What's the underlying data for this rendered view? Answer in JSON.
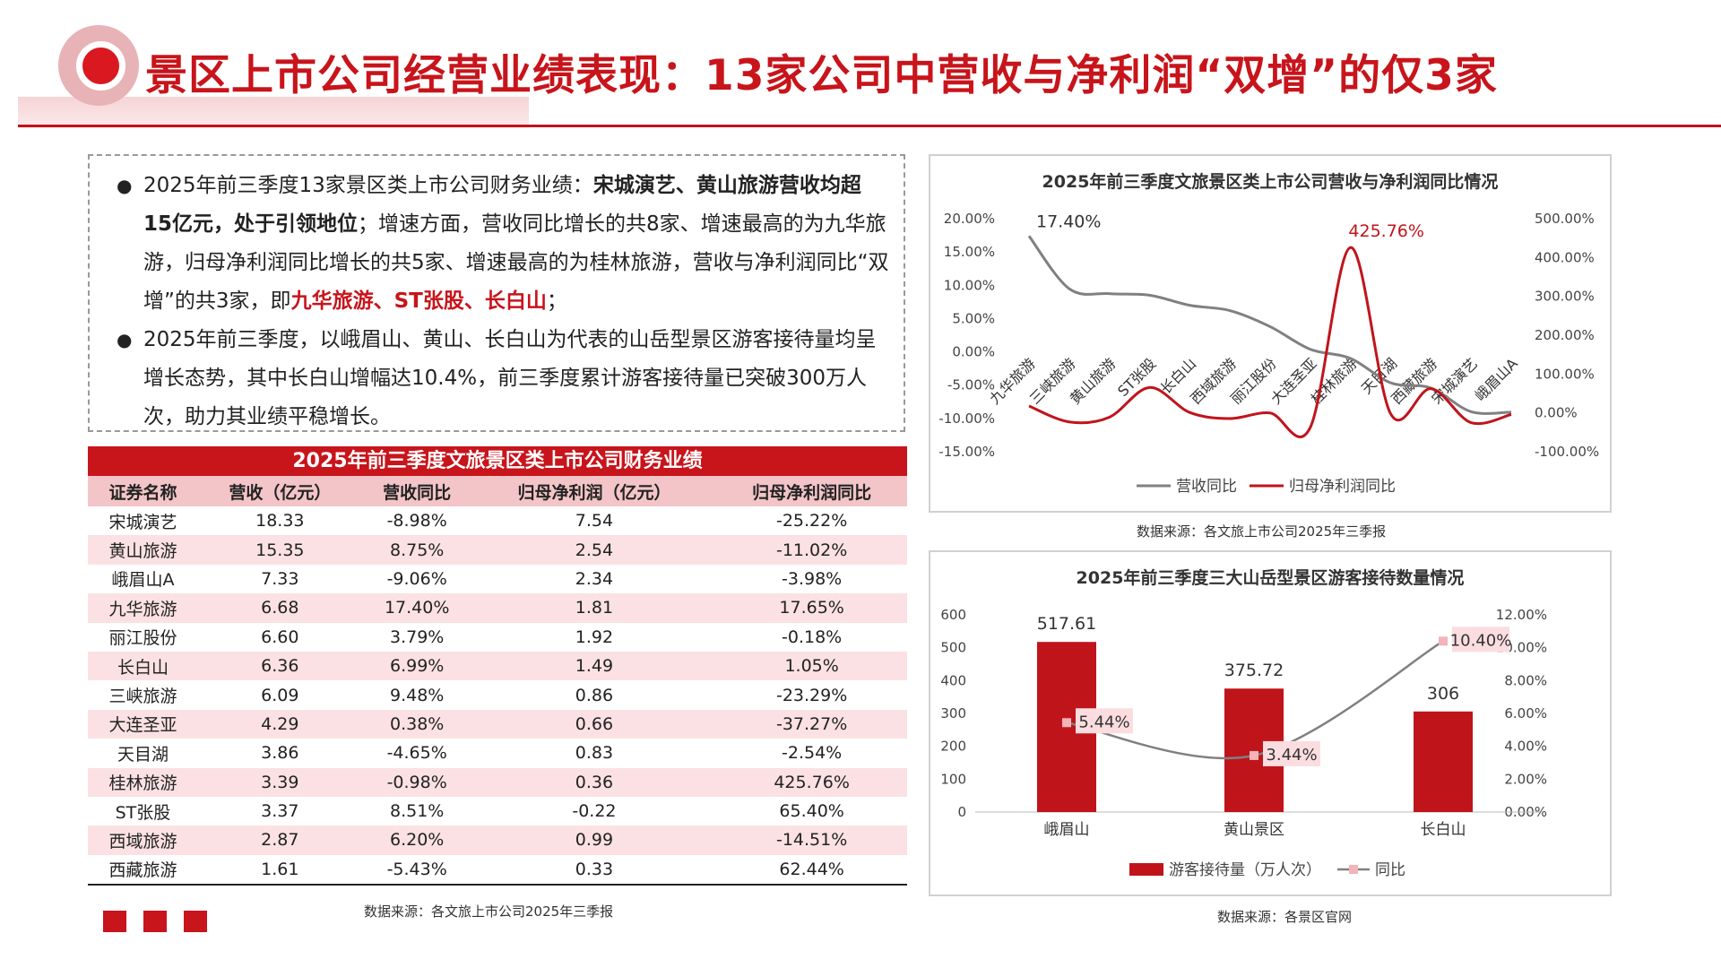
{
  "title": "景区上市公司经营业绩表现：13家公司中营收与净利润“双增”的仅3家",
  "bullets": [
    {
      "parts": [
        {
          "t": "2025年前三季度13家景区类上市公司财务业绩：",
          "s": ""
        },
        {
          "t": "宋城演艺、黄山旅游营收均超15亿元，处于引领地位",
          "s": "b"
        },
        {
          "t": "；增速方面，营收同比增长的共8家、增速最高的为九华旅游，归母净利润同比增长的共5家、增速最高的为桂林旅游，营收与净利润同比“双增”的共3家，即",
          "s": ""
        },
        {
          "t": "九华旅游、ST张股、长白山",
          "s": "red"
        },
        {
          "t": "；",
          "s": ""
        }
      ]
    },
    {
      "parts": [
        {
          "t": "2025年前三季度，以峨眉山、黄山、长白山为代表的山岳型景区游客接待量均呈增长态势，其中长白山增幅达10.4%，前三季度累计游客接待量已突破300万人次，助力其业绩平稳增长。",
          "s": ""
        }
      ]
    }
  ],
  "table": {
    "title": "2025年前三季度文旅景区类上市公司财务业绩",
    "headers": [
      "证券名称",
      "营收（亿元）",
      "营收同比",
      "归母净利润（亿元）",
      "归母净利润同比"
    ],
    "rows": [
      [
        "宋城演艺",
        "18.33",
        "-8.98%",
        "7.54",
        "-25.22%"
      ],
      [
        "黄山旅游",
        "15.35",
        "8.75%",
        "2.54",
        "-11.02%"
      ],
      [
        "峨眉山A",
        "7.33",
        "-9.06%",
        "2.34",
        "-3.98%"
      ],
      [
        "九华旅游",
        "6.68",
        "17.40%",
        "1.81",
        "17.65%"
      ],
      [
        "丽江股份",
        "6.60",
        "3.79%",
        "1.92",
        "-0.18%"
      ],
      [
        "长白山",
        "6.36",
        "6.99%",
        "1.49",
        "1.05%"
      ],
      [
        "三峡旅游",
        "6.09",
        "9.48%",
        "0.86",
        "-23.29%"
      ],
      [
        "大连圣亚",
        "4.29",
        "0.38%",
        "0.66",
        "-37.27%"
      ],
      [
        "天目湖",
        "3.86",
        "-4.65%",
        "0.83",
        "-2.54%"
      ],
      [
        "桂林旅游",
        "3.39",
        "-0.98%",
        "0.36",
        "425.76%"
      ],
      [
        "ST张股",
        "3.37",
        "8.51%",
        "-0.22",
        "65.40%"
      ],
      [
        "西域旅游",
        "2.87",
        "6.20%",
        "0.99",
        "-14.51%"
      ],
      [
        "西藏旅游",
        "1.61",
        "-5.43%",
        "0.33",
        "62.44%"
      ]
    ],
    "source": "数据来源：各文旅上市公司2025年三季报"
  },
  "chart_data": [
    {
      "type": "line",
      "title": "2025年前三季度文旅景区类上市公司营收与净利润同比情况",
      "categories": [
        "九华旅游",
        "三峡旅游",
        "黄山旅游",
        "ST张股",
        "长白山",
        "西域旅游",
        "丽江股份",
        "大连圣亚",
        "桂林旅游",
        "天目湖",
        "西藏旅游",
        "宋城演艺",
        "峨眉山A"
      ],
      "series": [
        {
          "name": "营收同比",
          "axis": "left",
          "color": "#808080",
          "values": [
            17.4,
            9.48,
            8.75,
            8.51,
            6.99,
            6.2,
            3.79,
            0.38,
            -0.98,
            -4.65,
            -5.43,
            -8.98,
            -9.06
          ]
        },
        {
          "name": "归母净利润同比",
          "axis": "right",
          "color": "#c0141b",
          "values": [
            17.65,
            -23.29,
            -11.02,
            65.4,
            1.05,
            -14.51,
            -0.18,
            -37.27,
            425.76,
            -2.54,
            62.44,
            -25.22,
            -3.98
          ]
        }
      ],
      "left_axis": {
        "min": -15,
        "max": 20,
        "ticks": [
          "20.00%",
          "15.00%",
          "10.00%",
          "5.00%",
          "0.00%",
          "-5.00%",
          "-10.00%",
          "-15.00%"
        ]
      },
      "right_axis": {
        "min": -100,
        "max": 500,
        "ticks": [
          "500.00%",
          "400.00%",
          "300.00%",
          "200.00%",
          "100.00%",
          "0.00%",
          "-100.00%"
        ]
      },
      "data_labels": [
        "17.40%",
        "425.76%"
      ],
      "legend": "bottom",
      "source": "数据来源：各文旅上市公司2025年三季报"
    },
    {
      "type": "bar",
      "title": "2025年前三季度三大山岳型景区游客接待数量情况",
      "categories": [
        "峨眉山",
        "黄山景区",
        "长白山"
      ],
      "series": [
        {
          "name": "游客接待量（万人次）",
          "axis": "left",
          "color": "#c0141b",
          "values": [
            517.61,
            375.72,
            306
          ],
          "labels": [
            "517.61",
            "375.72",
            "306"
          ]
        },
        {
          "name": "同比",
          "axis": "right",
          "type": "line",
          "color": "#808080",
          "values": [
            5.44,
            3.44,
            10.4
          ],
          "labels": [
            "5.44%",
            "3.44%",
            "10.40%"
          ]
        }
      ],
      "left_axis": {
        "min": 0,
        "max": 600,
        "ticks": [
          "600",
          "500",
          "400",
          "300",
          "200",
          "100",
          "0"
        ]
      },
      "right_axis": {
        "min": 0,
        "max": 12,
        "ticks": [
          "12.00%",
          "10.00%",
          "8.00%",
          "6.00%",
          "4.00%",
          "2.00%",
          "0.00%"
        ]
      },
      "legend": "bottom",
      "source": "数据来源：各景区官网"
    }
  ]
}
